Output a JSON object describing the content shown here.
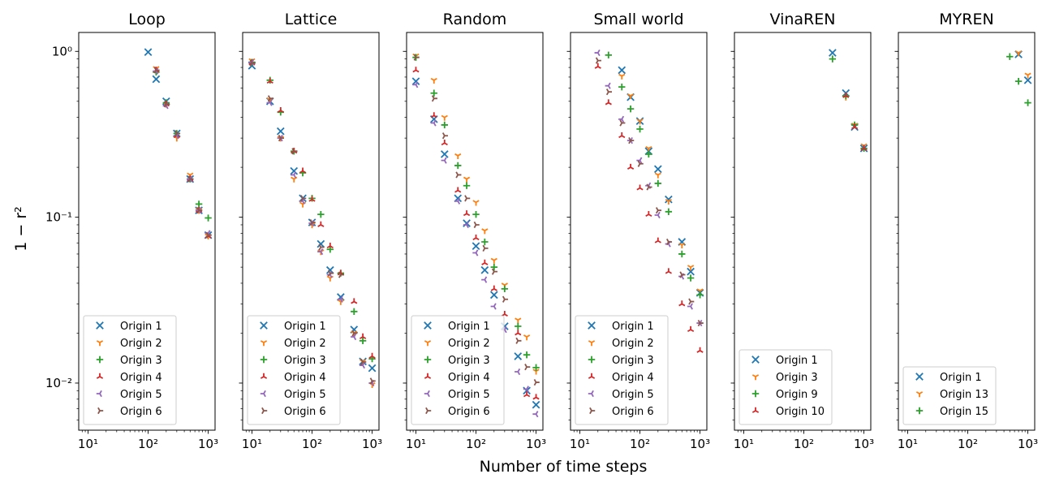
{
  "chart_data": {
    "type": "scatter",
    "xlabel": "Number of time steps",
    "ylabel": "1 − r²",
    "xscale": "log",
    "yscale": "log",
    "xlim": [
      7,
      1300
    ],
    "ylim": [
      0.0052,
      1.3
    ],
    "x_ticks": [
      {
        "value": 10,
        "label": "10¹"
      },
      {
        "value": 100,
        "label": "10²"
      },
      {
        "value": 1000,
        "label": "10³"
      }
    ],
    "y_ticks": [
      {
        "value": 1,
        "label": "10⁰"
      },
      {
        "value": 0.1,
        "label": "10⁻¹"
      },
      {
        "value": 0.01,
        "label": "10⁻²"
      }
    ],
    "legend_position": "lower-left",
    "panels": [
      {
        "title": "Loop",
        "series": [
          {
            "name": "Origin 1",
            "marker": "x",
            "color": "#1f77b4",
            "x": [
              100,
              136,
              200,
              300,
              500,
              700,
              1000
            ],
            "y": [
              0.99,
              0.68,
              0.5,
              0.32,
              0.17,
              0.11,
              0.078
            ]
          },
          {
            "name": "Origin 2",
            "marker": "tri_down",
            "color": "#ff7f0e",
            "x": [
              136,
              200,
              300,
              500,
              700,
              1000
            ],
            "y": [
              0.79,
              0.48,
              0.3,
              0.18,
              0.11,
              0.077
            ]
          },
          {
            "name": "Origin 3",
            "marker": "plus",
            "color": "#2ca02c",
            "x": [
              136,
              200,
              300,
              500,
              700,
              1000
            ],
            "y": [
              0.75,
              0.49,
              0.32,
              0.17,
              0.12,
              0.099
            ]
          },
          {
            "name": "Origin 4",
            "marker": "tri_up",
            "color": "#d62728",
            "x": [
              136,
              200,
              300,
              500,
              700,
              1000
            ],
            "y": [
              0.77,
              0.48,
              0.31,
              0.17,
              0.11,
              0.077
            ]
          },
          {
            "name": "Origin 5",
            "marker": "tri_left",
            "color": "#9467bd",
            "x": [
              136,
              200,
              300,
              500,
              700,
              1000
            ],
            "y": [
              0.76,
              0.47,
              0.31,
              0.17,
              0.11,
              0.08
            ]
          },
          {
            "name": "Origin 6",
            "marker": "tri_right",
            "color": "#8c564b",
            "x": [
              136,
              200,
              300,
              500,
              700,
              1000
            ],
            "y": [
              0.77,
              0.48,
              0.32,
              0.17,
              0.11,
              0.078
            ]
          }
        ]
      },
      {
        "title": "Lattice",
        "series": [
          {
            "name": "Origin 1",
            "marker": "x",
            "color": "#1f77b4",
            "x": [
              10,
              20,
              30,
              50,
              70,
              100,
              140,
              200,
              300,
              500,
              700,
              1000
            ],
            "y": [
              0.82,
              0.5,
              0.33,
              0.19,
              0.13,
              0.093,
              0.069,
              0.048,
              0.033,
              0.021,
              0.0135,
              0.0123
            ]
          },
          {
            "name": "Origin 2",
            "marker": "tri_down",
            "color": "#ff7f0e",
            "x": [
              10,
              20,
              30,
              50,
              70,
              100,
              140,
              200,
              300,
              500,
              700,
              1000
            ],
            "y": [
              0.88,
              0.51,
              0.3,
              0.17,
              0.12,
              0.09,
              0.062,
              0.043,
              0.031,
              0.02,
              0.0135,
              0.0098
            ]
          },
          {
            "name": "Origin 3",
            "marker": "plus",
            "color": "#2ca02c",
            "x": [
              10,
              20,
              30,
              50,
              70,
              100,
              140,
              200,
              300,
              500,
              700,
              1000
            ],
            "y": [
              0.86,
              0.67,
              0.43,
              0.25,
              0.185,
              0.13,
              0.104,
              0.064,
              0.046,
              0.027,
              0.018,
              0.014
            ]
          },
          {
            "name": "Origin 4",
            "marker": "tri_up",
            "color": "#d62728",
            "x": [
              10,
              20,
              30,
              50,
              70,
              100,
              140,
              200,
              300,
              500,
              700,
              1000
            ],
            "y": [
              0.85,
              0.66,
              0.44,
              0.25,
              0.19,
              0.128,
              0.09,
              0.067,
              0.046,
              0.031,
              0.019,
              0.0145
            ]
          },
          {
            "name": "Origin 5",
            "marker": "tri_left",
            "color": "#9467bd",
            "x": [
              10,
              20,
              30,
              50,
              70,
              100,
              140,
              200,
              300,
              500,
              700,
              1000
            ],
            "y": [
              0.86,
              0.49,
              0.3,
              0.18,
              0.125,
              0.092,
              0.062,
              0.045,
              0.032,
              0.019,
              0.0128,
              0.01
            ]
          },
          {
            "name": "Origin 6",
            "marker": "tri_right",
            "color": "#8c564b",
            "x": [
              10,
              20,
              30,
              50,
              70,
              100,
              140,
              200,
              300,
              500,
              700,
              1000
            ],
            "y": [
              0.85,
              0.52,
              0.3,
              0.25,
              0.13,
              0.093,
              0.066,
              0.046,
              0.045,
              0.02,
              0.0134,
              0.0103
            ]
          }
        ]
      },
      {
        "title": "Random",
        "series": [
          {
            "name": "Origin 1",
            "marker": "x",
            "color": "#1f77b4",
            "x": [
              10,
              20,
              30,
              50,
              70,
              100,
              140,
              200,
              300,
              500,
              700,
              1000
            ],
            "y": [
              0.66,
              0.39,
              0.24,
              0.13,
              0.092,
              0.067,
              0.048,
              0.034,
              0.022,
              0.0145,
              0.009,
              0.0074
            ]
          },
          {
            "name": "Origin 2",
            "marker": "tri_down",
            "color": "#ff7f0e",
            "x": [
              10,
              20,
              30,
              50,
              70,
              100,
              140,
              200,
              300,
              500,
              700,
              1000
            ],
            "y": [
              0.94,
              0.67,
              0.4,
              0.235,
              0.17,
              0.123,
              0.083,
              0.055,
              0.039,
              0.024,
              0.019,
              0.0118
            ]
          },
          {
            "name": "Origin 3",
            "marker": "plus",
            "color": "#2ca02c",
            "x": [
              10,
              20,
              30,
              50,
              70,
              100,
              140,
              200,
              300,
              500,
              700,
              1000
            ],
            "y": [
              0.92,
              0.56,
              0.36,
              0.205,
              0.155,
              0.104,
              0.071,
              0.05,
              0.037,
              0.022,
              0.0148,
              0.0124
            ]
          },
          {
            "name": "Origin 4",
            "marker": "tri_up",
            "color": "#d62728",
            "x": [
              10,
              20,
              30,
              50,
              70,
              100,
              140,
              200,
              300,
              500,
              700,
              1000
            ],
            "y": [
              0.77,
              0.41,
              0.28,
              0.145,
              0.105,
              0.075,
              0.053,
              0.037,
              0.026,
              0.02,
              0.0085,
              0.0082
            ]
          },
          {
            "name": "Origin 5",
            "marker": "tri_left",
            "color": "#9467bd",
            "x": [
              10,
              20,
              30,
              50,
              70,
              100,
              140,
              200,
              300,
              500,
              700,
              1000
            ],
            "y": [
              0.63,
              0.37,
              0.22,
              0.125,
              0.09,
              0.061,
              0.042,
              0.029,
              0.021,
              0.0117,
              0.0092,
              0.0065
            ]
          },
          {
            "name": "Origin 6",
            "marker": "tri_right",
            "color": "#8c564b",
            "x": [
              10,
              20,
              30,
              50,
              70,
              100,
              140,
              200,
              300,
              500,
              700,
              1000
            ],
            "y": [
              0.92,
              0.52,
              0.31,
              0.18,
              0.13,
              0.09,
              0.065,
              0.047,
              0.032,
              0.018,
              0.0125,
              0.0101
            ]
          }
        ]
      },
      {
        "title": "Small world",
        "series": [
          {
            "name": "Origin 1",
            "marker": "x",
            "color": "#1f77b4",
            "x": [
              50,
              70,
              100,
              140,
              200,
              300,
              500,
              700,
              1000
            ],
            "y": [
              0.77,
              0.53,
              0.38,
              0.25,
              0.195,
              0.128,
              0.071,
              0.047,
              0.035
            ]
          },
          {
            "name": "Origin 2",
            "marker": "tri_down",
            "color": "#ff7f0e",
            "x": [
              50,
              70,
              100,
              140,
              200,
              300,
              500,
              700,
              1000
            ],
            "y": [
              0.71,
              0.54,
              0.38,
              0.26,
              0.18,
              0.125,
              0.068,
              0.05,
              0.036
            ]
          },
          {
            "name": "Origin 3",
            "marker": "plus",
            "color": "#2ca02c",
            "x": [
              30,
              50,
              70,
              100,
              140,
              200,
              300,
              500,
              700,
              1000
            ],
            "y": [
              0.95,
              0.61,
              0.45,
              0.34,
              0.24,
              0.16,
              0.108,
              0.06,
              0.043,
              0.034
            ]
          },
          {
            "name": "Origin 4",
            "marker": "tri_up",
            "color": "#d62728",
            "x": [
              20,
              30,
              50,
              70,
              100,
              140,
              200,
              300,
              500,
              700,
              1000
            ],
            "y": [
              0.81,
              0.49,
              0.31,
              0.2,
              0.15,
              0.104,
              0.072,
              0.047,
              0.03,
              0.021,
              0.0157
            ]
          },
          {
            "name": "Origin 5",
            "marker": "tri_left",
            "color": "#9467bd",
            "x": [
              20,
              30,
              50,
              70,
              100,
              140,
              200,
              300,
              500,
              700,
              1000
            ],
            "y": [
              0.98,
              0.62,
              0.39,
              0.29,
              0.22,
              0.155,
              0.103,
              0.069,
              0.044,
              0.029,
              0.023
            ]
          },
          {
            "name": "Origin 6",
            "marker": "tri_right",
            "color": "#8c564b",
            "x": [
              20,
              30,
              50,
              70,
              100,
              140,
              200,
              300,
              500,
              700,
              1000
            ],
            "y": [
              0.88,
              0.57,
              0.37,
              0.29,
              0.21,
              0.152,
              0.11,
              0.071,
              0.045,
              0.031,
              0.023
            ]
          }
        ]
      },
      {
        "title": "VinaREN",
        "series": [
          {
            "name": "Origin 1",
            "marker": "x",
            "color": "#1f77b4",
            "x": [
              300,
              500,
              700,
              1000
            ],
            "y": [
              0.98,
              0.56,
              0.35,
              0.26
            ]
          },
          {
            "name": "Origin 3",
            "marker": "tri_down",
            "color": "#ff7f0e",
            "x": [
              500,
              700,
              1000
            ],
            "y": [
              0.53,
              0.36,
              0.27
            ]
          },
          {
            "name": "Origin 9",
            "marker": "plus",
            "color": "#2ca02c",
            "x": [
              300,
              500,
              700,
              1000
            ],
            "y": [
              0.9,
              0.54,
              0.36,
              0.26
            ]
          },
          {
            "name": "Origin 10",
            "marker": "tri_up",
            "color": "#d62728",
            "x": [
              500,
              700,
              1000
            ],
            "y": [
              0.54,
              0.35,
              0.26
            ]
          }
        ]
      },
      {
        "title": "MYREN",
        "series": [
          {
            "name": "Origin 1",
            "marker": "x",
            "color": "#1f77b4",
            "x": [
              700,
              1000
            ],
            "y": [
              0.96,
              0.67
            ]
          },
          {
            "name": "Origin 13",
            "marker": "tri_down",
            "color": "#ff7f0e",
            "x": [
              700,
              1000
            ],
            "y": [
              0.98,
              0.72
            ]
          },
          {
            "name": "Origin 15",
            "marker": "plus",
            "color": "#2ca02c",
            "x": [
              500,
              700,
              1000
            ],
            "y": [
              0.93,
              0.66,
              0.49
            ]
          }
        ]
      }
    ]
  }
}
